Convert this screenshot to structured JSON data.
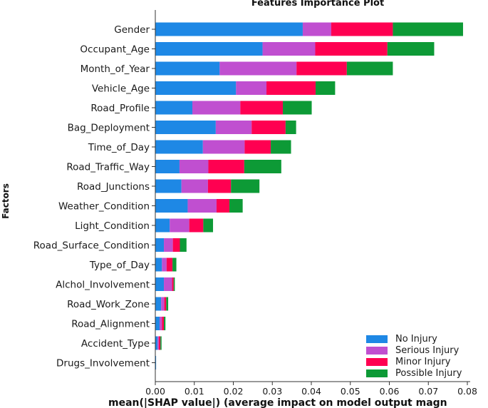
{
  "chart_data": {
    "type": "bar",
    "orientation": "horizontal",
    "stacked": true,
    "title": "Features Importance Plot",
    "xlabel": "mean(|SHAP value|) (average impact on model output magn",
    "ylabel": "Factors",
    "xlim": [
      0,
      0.08
    ],
    "xticks": [
      "0.00",
      "0.01",
      "0.02",
      "0.03",
      "0.04",
      "0.05",
      "0.06",
      "0.07",
      "0.08"
    ],
    "categories": [
      "Gender",
      "Occupant_Age",
      "Month_of_Year",
      "Vehicle_Age",
      "Road_Profile",
      "Bag_Deployment",
      "Time_of_Day",
      "Road_Traffic_Way",
      "Road_Junctions",
      "Weather_Condition",
      "Light_Condition",
      "Road_Surface_Condition",
      "Type_of_Day",
      "Alchol_Involvement",
      "Road_Work_Zone",
      "Road_Alignment",
      "Accident_Type",
      "Drugs_Involvement"
    ],
    "series": [
      {
        "name": "No Injury",
        "color": "#1e88e5",
        "values": [
          0.0378,
          0.0275,
          0.0165,
          0.0207,
          0.0095,
          0.0155,
          0.0122,
          0.0062,
          0.0067,
          0.0083,
          0.0037,
          0.0022,
          0.0017,
          0.0022,
          0.0015,
          0.0011,
          0.0006,
          0.0002
        ]
      },
      {
        "name": "Serious Injury",
        "color": "#c04fd0",
        "values": [
          0.0073,
          0.0135,
          0.0197,
          0.0078,
          0.0123,
          0.0092,
          0.0107,
          0.0074,
          0.0068,
          0.0074,
          0.005,
          0.0023,
          0.0012,
          0.0021,
          0.0008,
          0.0006,
          0.0003,
          0.0
        ]
      },
      {
        "name": "Minor Injury",
        "color": "#ff0051",
        "values": [
          0.0158,
          0.0185,
          0.0129,
          0.0126,
          0.0109,
          0.0087,
          0.0067,
          0.0092,
          0.0059,
          0.0033,
          0.0036,
          0.0018,
          0.0015,
          0.0004,
          0.0005,
          0.0005,
          0.0004,
          0.0
        ]
      },
      {
        "name": "Possible Injury",
        "color": "#0d9a36",
        "values": [
          0.018,
          0.012,
          0.0118,
          0.005,
          0.0074,
          0.0027,
          0.0052,
          0.0095,
          0.0073,
          0.0034,
          0.0025,
          0.0017,
          0.001,
          0.0003,
          0.0005,
          0.0004,
          0.0003,
          0.0
        ]
      }
    ],
    "legend": {
      "position": "bottom-right"
    },
    "grid": false
  }
}
